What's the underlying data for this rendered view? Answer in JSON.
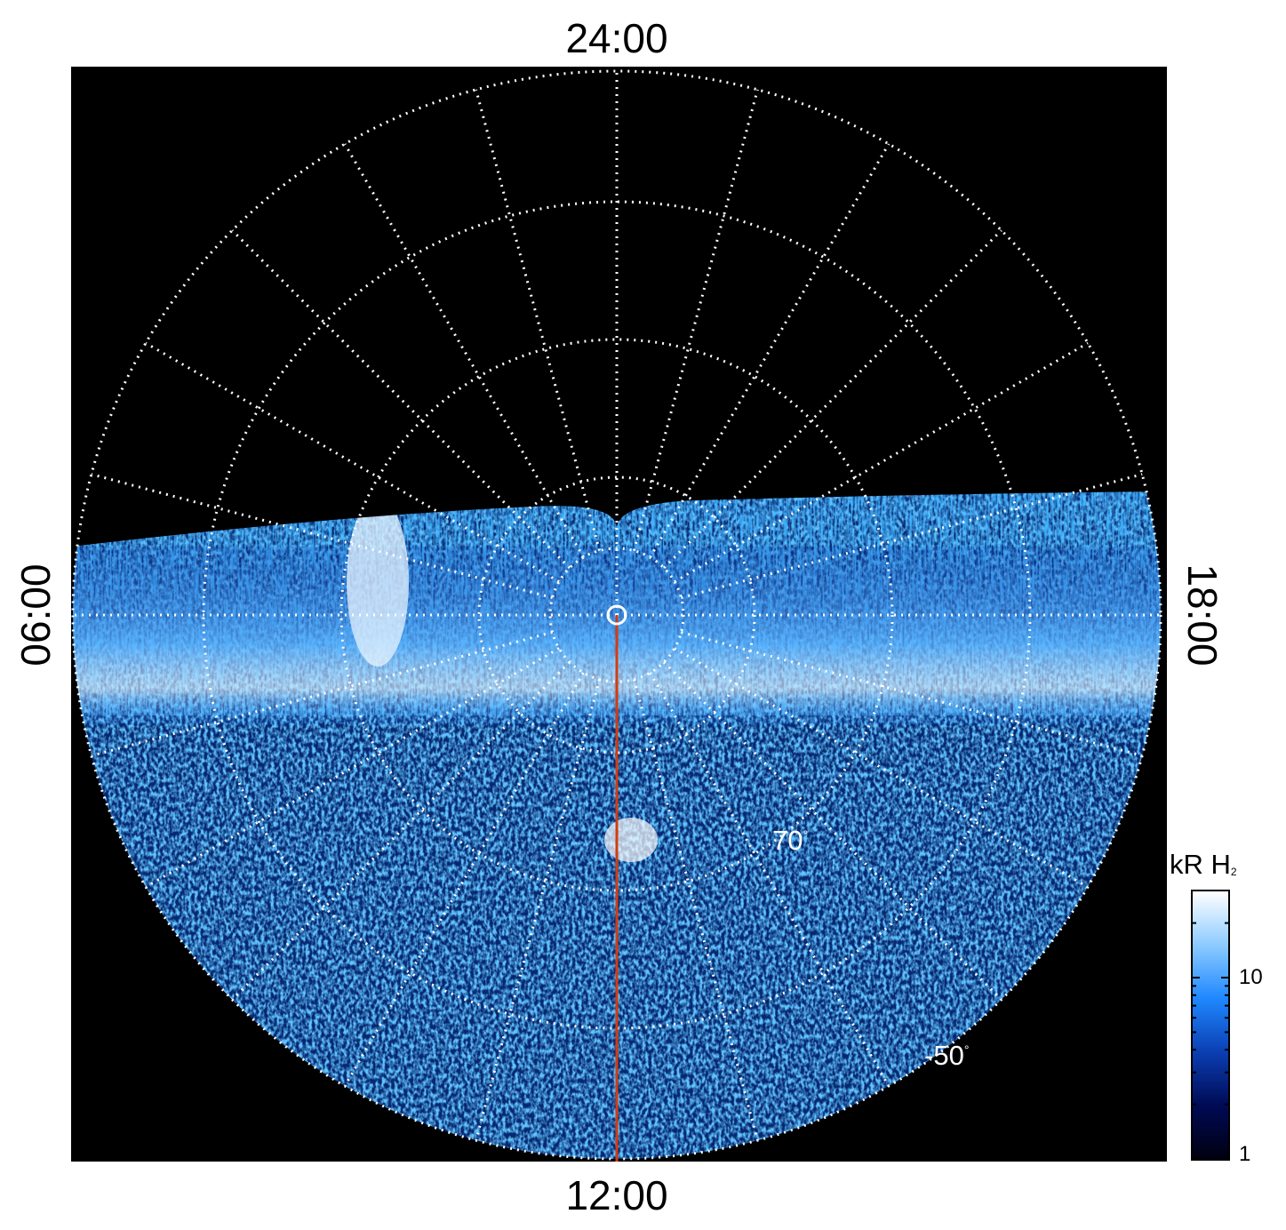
{
  "time_labels": {
    "top": "24:00",
    "bottom": "12:00",
    "left": "06:00",
    "right": "18:00"
  },
  "latitude_labels": {
    "inner": "70",
    "outer": "-50",
    "degree_symbol": "°"
  },
  "colorbar": {
    "title": "kR H",
    "title_subscript": "2",
    "scale": "log",
    "ticks": [
      "10",
      "1"
    ],
    "colors": [
      "#000010",
      "#000a55",
      "#0b3fb3",
      "#1f88ff",
      "#8dcbff",
      "#ffffff"
    ]
  },
  "colors": {
    "background": "#000000",
    "grid": "#ffffff",
    "meridian_line": "#d23c10"
  }
}
